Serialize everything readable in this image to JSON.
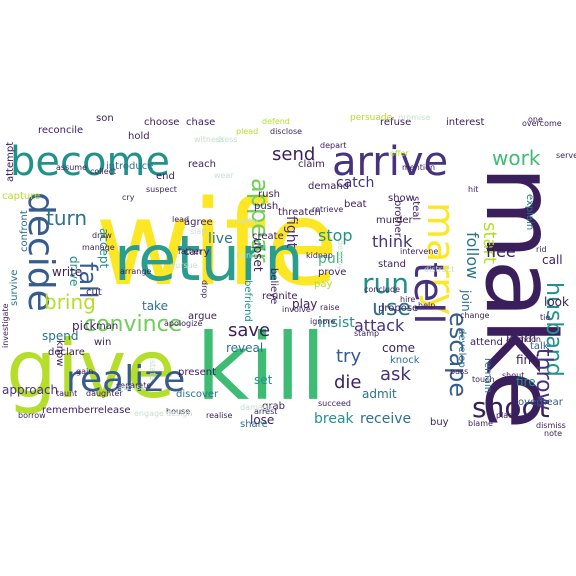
{
  "palette": {
    "navy": "#3b1f5c",
    "indigo": "#46327e",
    "blue": "#365c8d",
    "steel": "#2c728e",
    "teal": "#21918c",
    "sea": "#2a9d8f",
    "green": "#3fbc73",
    "lime": "#6ece58",
    "chartreuse": "#b5de2b",
    "yellow": "#fde725",
    "mint": "#8fd7a0",
    "pale": "#c7e0cf"
  },
  "words": [
    {
      "text": "wife",
      "color": "yellow"
    },
    {
      "text": "make",
      "color": "navy"
    },
    {
      "text": "give",
      "color": "chartreuse"
    },
    {
      "text": "kill",
      "color": "green"
    },
    {
      "text": "return",
      "color": "sea"
    },
    {
      "text": "become",
      "color": "teal"
    },
    {
      "text": "arrive",
      "color": "indigo"
    },
    {
      "text": "marry",
      "color": "yellow"
    },
    {
      "text": "tell",
      "color": "indigo"
    },
    {
      "text": "decide",
      "color": "blue"
    },
    {
      "text": "realize",
      "color": "blue"
    },
    {
      "text": "convince",
      "color": "lime"
    },
    {
      "text": "shoot",
      "color": "navy"
    },
    {
      "text": "husband",
      "color": "teal"
    },
    {
      "text": "escape",
      "color": "blue"
    },
    {
      "text": "run",
      "color": "teal"
    },
    {
      "text": "use",
      "color": "steel"
    },
    {
      "text": "fall",
      "color": "blue"
    },
    {
      "text": "throw",
      "color": "indigo"
    },
    {
      "text": "appear",
      "color": "lime"
    },
    {
      "text": "work",
      "color": "green"
    },
    {
      "text": "send",
      "color": "navy"
    },
    {
      "text": "start",
      "color": "chartreuse"
    },
    {
      "text": "follow",
      "color": "steel"
    },
    {
      "text": "turn",
      "color": "steel"
    },
    {
      "text": "bring",
      "color": "chartreuse"
    },
    {
      "text": "save",
      "color": "navy"
    },
    {
      "text": "try",
      "color": "blue"
    },
    {
      "text": "die",
      "color": "navy"
    },
    {
      "text": "ask",
      "color": "indigo"
    },
    {
      "text": "flee",
      "color": "navy"
    },
    {
      "text": "insist",
      "color": "teal"
    },
    {
      "text": "attack",
      "color": "indigo"
    },
    {
      "text": "stop",
      "color": "teal"
    },
    {
      "text": "pull",
      "color": "green"
    },
    {
      "text": "think",
      "color": "indigo"
    },
    {
      "text": "catch",
      "color": "indigo"
    },
    {
      "text": "reveal",
      "color": "steel"
    },
    {
      "text": "come",
      "color": "navy"
    },
    {
      "text": "admit",
      "color": "steel"
    },
    {
      "text": "receive",
      "color": "steel"
    },
    {
      "text": "break",
      "color": "teal"
    },
    {
      "text": "lose",
      "color": "navy"
    },
    {
      "text": "fight",
      "color": "indigo"
    },
    {
      "text": "live",
      "color": "steel"
    },
    {
      "text": "knock",
      "color": "steel"
    },
    {
      "text": "drive",
      "color": "teal"
    },
    {
      "text": "accept",
      "color": "teal"
    },
    {
      "text": "upset",
      "color": "navy"
    },
    {
      "text": "set",
      "color": "teal"
    },
    {
      "text": "play",
      "color": "navy"
    },
    {
      "text": "pick",
      "color": "navy"
    },
    {
      "text": "spend",
      "color": "steel"
    },
    {
      "text": "take",
      "color": "steel"
    },
    {
      "text": "write",
      "color": "navy"
    },
    {
      "text": "join",
      "color": "steel"
    },
    {
      "text": "develop",
      "color": "steel"
    },
    {
      "text": "find",
      "color": "navy"
    },
    {
      "text": "fire",
      "color": "teal"
    },
    {
      "text": "call",
      "color": "navy"
    },
    {
      "text": "look",
      "color": "navy"
    },
    {
      "text": "learn",
      "color": "navy"
    },
    {
      "text": "talk",
      "color": "blue"
    },
    {
      "text": "overhear",
      "color": "blue"
    },
    {
      "text": "share",
      "color": "steel"
    },
    {
      "text": "grab",
      "color": "navy"
    },
    {
      "text": "buy",
      "color": "navy"
    },
    {
      "text": "attend",
      "color": "navy"
    },
    {
      "text": "believe",
      "color": "navy"
    },
    {
      "text": "prove",
      "color": "navy"
    },
    {
      "text": "befriend",
      "color": "teal"
    },
    {
      "text": "carry",
      "color": "navy"
    },
    {
      "text": "agree",
      "color": "navy"
    },
    {
      "text": "argue",
      "color": "navy"
    },
    {
      "text": "rush",
      "color": "navy"
    },
    {
      "text": "claim",
      "color": "navy"
    },
    {
      "text": "beat",
      "color": "navy"
    },
    {
      "text": "show",
      "color": "navy"
    },
    {
      "text": "murder",
      "color": "navy"
    },
    {
      "text": "stand",
      "color": "navy"
    },
    {
      "text": "demand",
      "color": "navy"
    },
    {
      "text": "brother",
      "color": "navy"
    },
    {
      "text": "steal",
      "color": "navy"
    },
    {
      "text": "explain",
      "color": "steel"
    },
    {
      "text": "reach",
      "color": "navy"
    },
    {
      "text": "introduce",
      "color": "steel"
    },
    {
      "text": "end",
      "color": "navy"
    },
    {
      "text": "chase",
      "color": "navy"
    },
    {
      "text": "choose",
      "color": "navy"
    },
    {
      "text": "hold",
      "color": "navy"
    },
    {
      "text": "son",
      "color": "navy"
    },
    {
      "text": "reconcile",
      "color": "navy"
    },
    {
      "text": "capture",
      "color": "chartreuse"
    },
    {
      "text": "attempt",
      "color": "navy"
    },
    {
      "text": "confront",
      "color": "steel"
    },
    {
      "text": "survive",
      "color": "steel"
    },
    {
      "text": "approach",
      "color": "indigo"
    },
    {
      "text": "remember",
      "color": "navy"
    },
    {
      "text": "release",
      "color": "navy"
    },
    {
      "text": "discover",
      "color": "steel"
    },
    {
      "text": "present",
      "color": "navy"
    },
    {
      "text": "win",
      "color": "navy"
    },
    {
      "text": "man",
      "color": "navy"
    },
    {
      "text": "declare",
      "color": "navy"
    },
    {
      "text": "know",
      "color": "navy"
    },
    {
      "text": "cut",
      "color": "navy"
    },
    {
      "text": "pay",
      "color": "chartreuse"
    },
    {
      "text": "threaten",
      "color": "navy"
    },
    {
      "text": "push",
      "color": "navy"
    },
    {
      "text": "create",
      "color": "navy"
    },
    {
      "text": "reunite",
      "color": "navy"
    },
    {
      "text": "propose",
      "color": "navy"
    },
    {
      "text": "hire",
      "color": "navy"
    },
    {
      "text": "remain",
      "color": "steel"
    },
    {
      "text": "change",
      "color": "navy"
    },
    {
      "text": "mention",
      "color": "navy"
    },
    {
      "text": "hit",
      "color": "navy"
    },
    {
      "text": "refuse",
      "color": "navy"
    },
    {
      "text": "interest",
      "color": "navy"
    },
    {
      "text": "persuade",
      "color": "chartreuse"
    },
    {
      "text": "one",
      "color": "navy"
    },
    {
      "text": "ignore",
      "color": "navy"
    },
    {
      "text": "plead",
      "color": "chartreuse"
    },
    {
      "text": "defend",
      "color": "chartreuse"
    },
    {
      "text": "depart",
      "color": "navy"
    },
    {
      "text": "intervene",
      "color": "navy"
    },
    {
      "text": "rid",
      "color": "navy"
    },
    {
      "text": "house",
      "color": "navy"
    },
    {
      "text": "offer",
      "color": "chartreuse"
    },
    {
      "text": "suspect",
      "color": "navy"
    },
    {
      "text": "abandon",
      "color": "navy"
    },
    {
      "text": "separate",
      "color": "navy"
    },
    {
      "text": "apologize",
      "color": "navy"
    },
    {
      "text": "involve",
      "color": "navy"
    },
    {
      "text": "lead",
      "color": "navy"
    },
    {
      "text": "drop",
      "color": "navy"
    },
    {
      "text": "father",
      "color": "navy"
    },
    {
      "text": "arrange",
      "color": "navy"
    },
    {
      "text": "manage",
      "color": "navy"
    },
    {
      "text": "draw",
      "color": "navy"
    },
    {
      "text": "taunt",
      "color": "navy"
    },
    {
      "text": "daughter",
      "color": "navy"
    },
    {
      "text": "gain",
      "color": "navy"
    },
    {
      "text": "kidnap",
      "color": "navy"
    },
    {
      "text": "retrieve",
      "color": "navy"
    },
    {
      "text": "dismiss",
      "color": "navy"
    },
    {
      "text": "blame",
      "color": "navy"
    },
    {
      "text": "arrest",
      "color": "navy"
    },
    {
      "text": "realise",
      "color": "navy"
    },
    {
      "text": "lure",
      "color": "navy"
    },
    {
      "text": "pass",
      "color": "navy"
    },
    {
      "text": "help",
      "color": "navy"
    },
    {
      "text": "succeed",
      "color": "navy"
    },
    {
      "text": "pursue",
      "color": "pale"
    },
    {
      "text": "coffer",
      "color": "pale"
    },
    {
      "text": "accuse",
      "color": "pale"
    },
    {
      "text": "destroy",
      "color": "pale"
    },
    {
      "text": "slap",
      "color": "pale"
    },
    {
      "text": "hand",
      "color": "pale"
    },
    {
      "text": "state",
      "color": "pale"
    },
    {
      "text": "raise",
      "color": "navy"
    },
    {
      "text": "conclude",
      "color": "navy"
    },
    {
      "text": "place",
      "color": "navy"
    },
    {
      "text": "touch",
      "color": "navy"
    },
    {
      "text": "borrow",
      "color": "navy"
    },
    {
      "text": "collect",
      "color": "navy"
    },
    {
      "text": "investigate",
      "color": "navy"
    },
    {
      "text": "shout",
      "color": "navy"
    },
    {
      "text": "distract",
      "color": "pale"
    },
    {
      "text": "design",
      "color": "pale"
    },
    {
      "text": "promise",
      "color": "pale"
    },
    {
      "text": "disclose",
      "color": "navy"
    },
    {
      "text": "overcome",
      "color": "navy"
    },
    {
      "text": "serve",
      "color": "navy"
    },
    {
      "text": "witness",
      "color": "pale"
    },
    {
      "text": "dress",
      "color": "pale"
    },
    {
      "text": "wear",
      "color": "pale"
    },
    {
      "text": "damage",
      "color": "pale"
    },
    {
      "text": "stamp",
      "color": "navy"
    },
    {
      "text": "note",
      "color": "navy"
    },
    {
      "text": "assume",
      "color": "navy"
    },
    {
      "text": "tie",
      "color": "navy"
    },
    {
      "text": "cry",
      "color": "navy"
    },
    {
      "text": "engage",
      "color": "pale"
    }
  ]
}
